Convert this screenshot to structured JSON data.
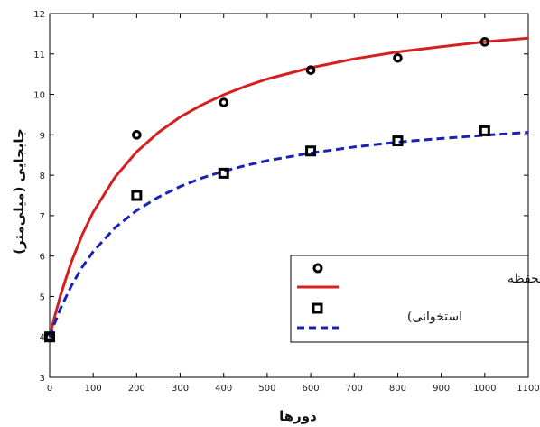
{
  "chart_data": {
    "type": "line",
    "xlabel": "دورها",
    "ylabel": "جابجایی (میلی‌متر)",
    "xlim": [
      0,
      1100
    ],
    "ylim": [
      3,
      12
    ],
    "xticks": [
      0,
      100,
      200,
      300,
      400,
      500,
      600,
      700,
      800,
      900,
      1000,
      1100
    ],
    "yticks": [
      3,
      4,
      5,
      6,
      7,
      8,
      9,
      10,
      11,
      12
    ],
    "grid": false,
    "legend_position": "lower-right",
    "legend_lines": [
      "گروه الف (جاگذاری محفظه",
      "استخوانی)"
    ],
    "series": [
      {
        "kind": "points",
        "marker": "circle",
        "color": "#000000",
        "x": [
          0,
          200,
          400,
          600,
          800,
          1000
        ],
        "y": [
          4.0,
          9.0,
          9.8,
          10.6,
          10.9,
          11.3
        ]
      },
      {
        "kind": "line",
        "style": "solid",
        "color": "#d42020",
        "x": [
          0,
          10,
          25,
          50,
          75,
          100,
          150,
          200,
          250,
          300,
          350,
          400,
          450,
          500,
          600,
          700,
          800,
          900,
          1000,
          1100
        ],
        "y": [
          4.0,
          4.44,
          5.03,
          5.86,
          6.53,
          7.09,
          7.95,
          8.58,
          9.06,
          9.44,
          9.74,
          9.99,
          10.2,
          10.38,
          10.66,
          10.88,
          11.05,
          11.18,
          11.3,
          11.39
        ]
      },
      {
        "kind": "points",
        "marker": "square",
        "color": "#000000",
        "x": [
          0,
          200,
          400,
          600,
          800,
          1000
        ],
        "y": [
          4.0,
          7.5,
          8.05,
          8.6,
          8.85,
          9.1
        ]
      },
      {
        "kind": "line",
        "style": "dashed",
        "color": "#1a22b5",
        "x": [
          0,
          10,
          25,
          50,
          75,
          100,
          150,
          200,
          250,
          300,
          350,
          400,
          450,
          500,
          600,
          700,
          800,
          900,
          1000,
          1100
        ],
        "y": [
          4.0,
          4.3,
          4.7,
          5.27,
          5.73,
          6.11,
          6.7,
          7.13,
          7.46,
          7.72,
          7.93,
          8.1,
          8.24,
          8.36,
          8.55,
          8.7,
          8.82,
          8.91,
          8.99,
          9.06
        ]
      }
    ]
  }
}
